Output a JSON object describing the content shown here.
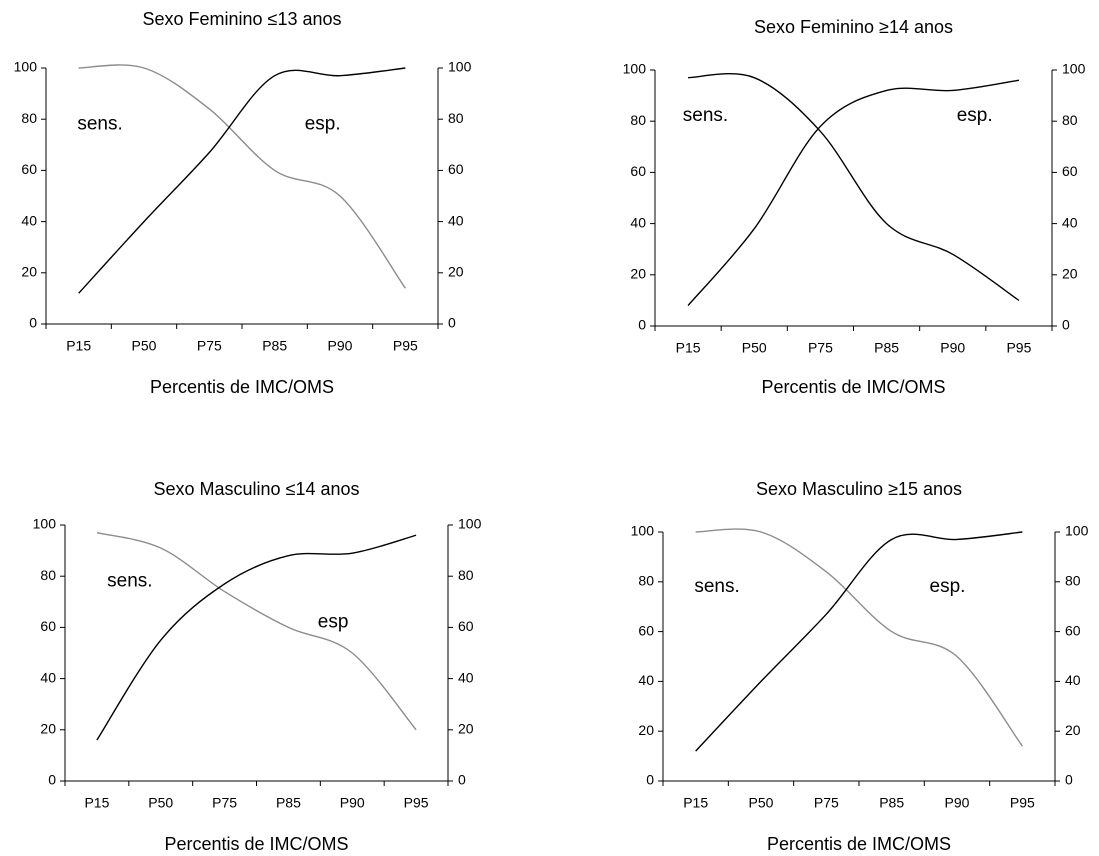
{
  "chart_data": [
    {
      "type": "line",
      "title": "Sexo Feminino ≤13 anos",
      "x_label": "Percentis de IMC/OMS",
      "categories": [
        "P15",
        "P50",
        "P75",
        "P85",
        "P90",
        "P95"
      ],
      "series": [
        {
          "name": "sens.",
          "color": "#8c8c8c",
          "values": [
            100,
            100,
            84,
            60,
            50,
            14
          ]
        },
        {
          "name": "esp.",
          "color": "#000000",
          "values": [
            12,
            40,
            67,
            97,
            97,
            100
          ]
        }
      ],
      "ylim": [
        0,
        100
      ],
      "yticks": [
        0,
        20,
        40,
        60,
        80,
        100
      ],
      "y2lim": [
        0,
        100
      ],
      "y2ticks": [
        0,
        20,
        40,
        60,
        80,
        100
      ]
    },
    {
      "type": "line",
      "title": "Sexo Feminino ≥14 anos",
      "x_label": "Percentis de IMC/OMS",
      "categories": [
        "P15",
        "P50",
        "P75",
        "P85",
        "P90",
        "P95"
      ],
      "series": [
        {
          "name": "sens.",
          "color": "#000000",
          "values": [
            97,
            97,
            76,
            40,
            28,
            10
          ]
        },
        {
          "name": "esp.",
          "color": "#000000",
          "values": [
            8,
            38,
            78,
            92,
            92,
            96
          ]
        }
      ],
      "ylim": [
        0,
        100
      ],
      "yticks": [
        0,
        20,
        40,
        60,
        80,
        100
      ],
      "y2lim": [
        0,
        100
      ],
      "y2ticks": [
        0,
        20,
        40,
        60,
        80,
        100
      ]
    },
    {
      "type": "line",
      "title": "Sexo Masculino ≤14 anos",
      "x_label": "Percentis de IMC/OMS",
      "categories": [
        "P15",
        "P50",
        "P75",
        "P85",
        "P90",
        "P95"
      ],
      "series": [
        {
          "name": "sens.",
          "color": "#8c8c8c",
          "values": [
            97,
            91,
            74,
            60,
            50,
            20
          ]
        },
        {
          "name": "esp",
          "color": "#000000",
          "values": [
            16,
            55,
            77,
            88,
            89,
            96
          ]
        }
      ],
      "ylim": [
        0,
        100
      ],
      "yticks": [
        0,
        20,
        40,
        60,
        80,
        100
      ],
      "y2lim": [
        0,
        100
      ],
      "y2ticks": [
        0,
        20,
        40,
        60,
        80,
        100
      ]
    },
    {
      "type": "line",
      "title": "Sexo Masculino ≥15 anos",
      "x_label": "Percentis de IMC/OMS",
      "categories": [
        "P15",
        "P50",
        "P75",
        "P85",
        "P90",
        "P95"
      ],
      "series": [
        {
          "name": "sens.",
          "color": "#8c8c8c",
          "values": [
            100,
            100,
            84,
            60,
            50,
            14
          ]
        },
        {
          "name": "esp.",
          "color": "#000000",
          "values": [
            12,
            40,
            67,
            97,
            97,
            100
          ]
        }
      ],
      "ylim": [
        0,
        100
      ],
      "yticks": [
        0,
        20,
        40,
        60,
        80,
        100
      ],
      "y2lim": [
        0,
        100
      ],
      "y2ticks": [
        0,
        20,
        40,
        60,
        80,
        100
      ]
    }
  ]
}
